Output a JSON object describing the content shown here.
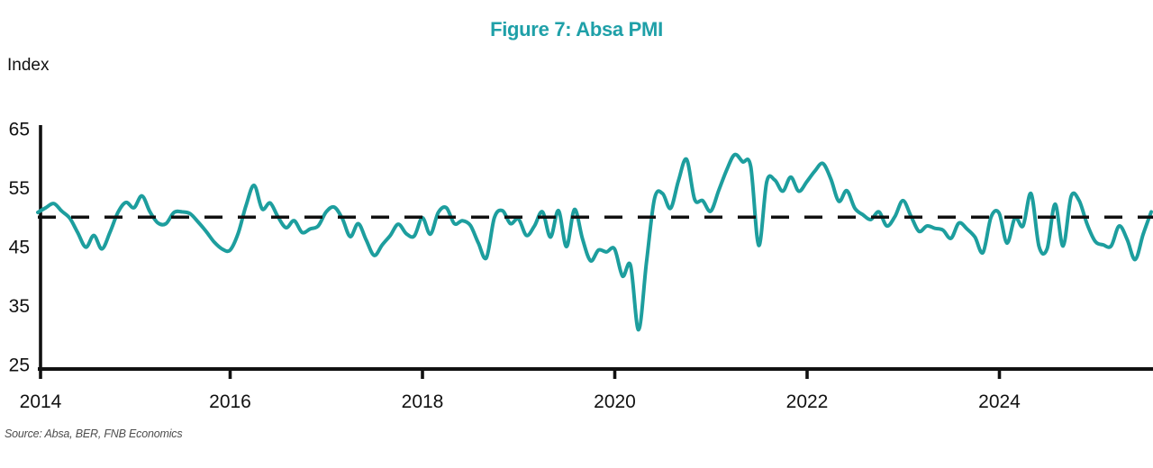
{
  "chart_data": {
    "type": "line",
    "title": "Figure 7: Absa PMI",
    "ylabel": "Index",
    "source": "Source: Absa, BER, FNB Economics",
    "x_ticks": [
      "2014",
      "2016",
      "2018",
      "2020",
      "2022",
      "2024"
    ],
    "y_ticks": [
      65,
      55,
      45,
      35,
      25
    ],
    "ylim": [
      25,
      65
    ],
    "x_range": [
      "2014-01",
      "2025-08"
    ],
    "reference_line": 50,
    "grid": false,
    "legend": "none",
    "colors": {
      "line": "#1d9e9e",
      "title": "#1fa0a8",
      "axis": "#111111",
      "reference": "#111111",
      "source_text": "#4d4d4d"
    },
    "series": [
      {
        "name": "Absa PMI",
        "frequency": "monthly",
        "start": "2014-01",
        "values": [
          50.8,
          51.6,
          52.3,
          51.0,
          49.8,
          47.3,
          44.9,
          46.9,
          44.6,
          47.4,
          50.8,
          52.5,
          51.6,
          53.6,
          50.9,
          49.0,
          48.9,
          50.8,
          50.9,
          50.6,
          49.2,
          47.6,
          45.8,
          44.6,
          44.4,
          47.2,
          52.0,
          55.4,
          51.4,
          52.4,
          50.0,
          48.2,
          49.4,
          47.4,
          48.0,
          48.5,
          50.9,
          51.7,
          49.8,
          46.7,
          48.9,
          46.1,
          43.5,
          45.3,
          46.9,
          48.8,
          47.2,
          46.8,
          49.9,
          47.1,
          50.8,
          51.6,
          48.9,
          49.4,
          48.6,
          45.6,
          43.1,
          49.9,
          51.1,
          48.9,
          49.7,
          46.9,
          48.5,
          50.9,
          46.6,
          51.1,
          45.0,
          51.3,
          46.3,
          42.6,
          44.4,
          44.1,
          44.6,
          40.0,
          41.8,
          30.9,
          42.5,
          53.2,
          54.0,
          51.5,
          56.3,
          59.8,
          53.0,
          52.8,
          51.0,
          54.5,
          58.0,
          60.6,
          59.4,
          58.6,
          45.2,
          56.0,
          56.3,
          54.4,
          56.8,
          54.4,
          56.0,
          57.8,
          59.1,
          56.5,
          52.7,
          54.5,
          51.5,
          50.4,
          49.6,
          50.9,
          48.5,
          50.1,
          52.8,
          50.2,
          47.6,
          48.5,
          48.1,
          47.8,
          46.4,
          49.0,
          48.0,
          46.6,
          44.0,
          50.0,
          50.7,
          45.6,
          49.9,
          48.5,
          54.0,
          45.0,
          44.6,
          52.2,
          45.1,
          53.5,
          52.8,
          48.8,
          45.9,
          45.3,
          45.1,
          48.5,
          46.2,
          42.8,
          47.1,
          50.9
        ]
      }
    ]
  }
}
